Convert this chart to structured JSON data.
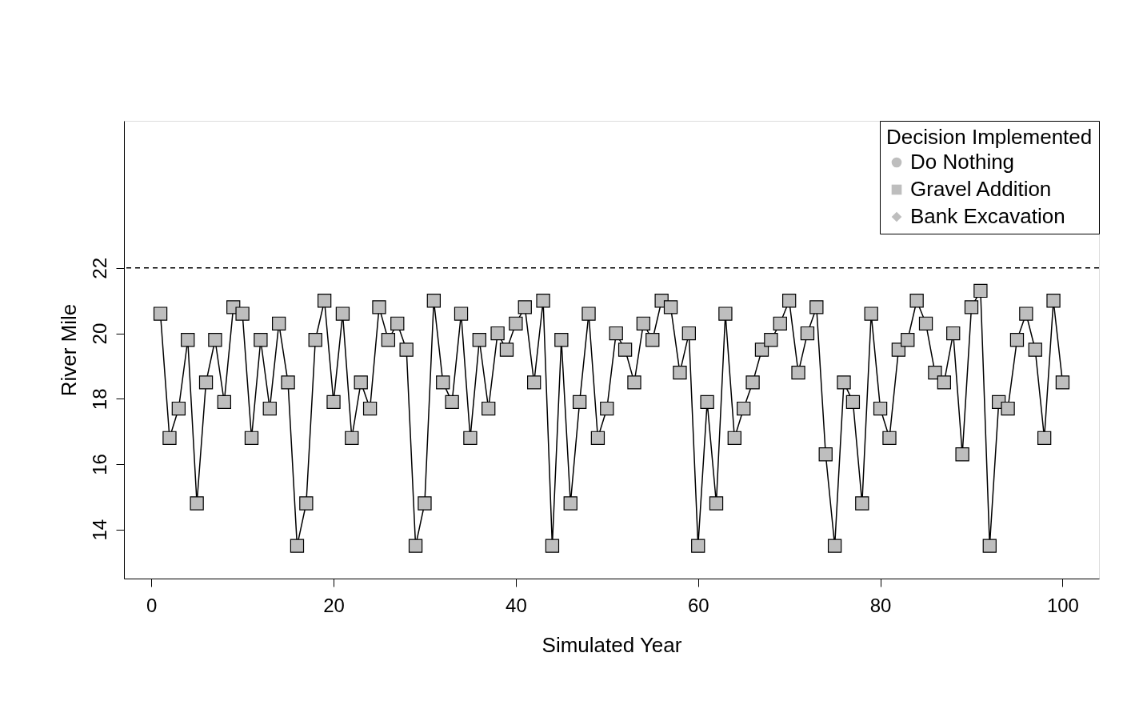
{
  "chart_data": {
    "type": "line",
    "xlabel": "Simulated Year",
    "ylabel": "River Mile",
    "legend_title": "Decision Implemented",
    "legend": "top right",
    "grid": false,
    "line_style": "solid",
    "xlim": [
      -3,
      104
    ],
    "ylim": [
      12.5,
      26.5
    ],
    "xticks": [
      0,
      20,
      40,
      60,
      80,
      100
    ],
    "yticks": [
      14,
      16,
      18,
      20,
      22
    ],
    "ref_lines": [
      {
        "axis": "y",
        "value": 22,
        "line_style": "dashed",
        "color": "#000000"
      }
    ],
    "series": [
      {
        "name": "Do Nothing",
        "color": "#bebebe",
        "marker": "circle"
      },
      {
        "name": "Gravel Addition",
        "color": "#bebebe",
        "marker": "square",
        "x": [
          1,
          2,
          3,
          4,
          5,
          6,
          7,
          8,
          9,
          10,
          11,
          12,
          13,
          14,
          15,
          16,
          17,
          18,
          19,
          20,
          21,
          22,
          23,
          24,
          25,
          26,
          27,
          28,
          29,
          30,
          31,
          32,
          33,
          34,
          35,
          36,
          37,
          38,
          39,
          40,
          41,
          42,
          43,
          44,
          45,
          46,
          47,
          48,
          49,
          50,
          51,
          52,
          53,
          54,
          55,
          56,
          57,
          58,
          59,
          60,
          61,
          62,
          63,
          64,
          65,
          66,
          67,
          68,
          69,
          70,
          71,
          72,
          73,
          74,
          75,
          76,
          77,
          78,
          79,
          80,
          81,
          82,
          83,
          84,
          85,
          86,
          87,
          88,
          89,
          90,
          91,
          92,
          93,
          94,
          95,
          96,
          97,
          98,
          99,
          100
        ],
        "values": [
          20.6,
          16.8,
          17.7,
          19.8,
          14.8,
          18.5,
          19.8,
          17.9,
          20.8,
          20.6,
          16.8,
          19.8,
          17.7,
          20.3,
          18.5,
          13.5,
          14.8,
          19.8,
          21.0,
          17.9,
          20.6,
          16.8,
          18.5,
          17.7,
          20.8,
          19.8,
          20.3,
          19.5,
          13.5,
          14.8,
          21.0,
          18.5,
          17.9,
          20.6,
          16.8,
          19.8,
          17.7,
          20.0,
          19.5,
          20.3,
          20.8,
          18.5,
          21.0,
          13.5,
          19.8,
          14.8,
          17.9,
          20.6,
          16.8,
          17.7,
          20.0,
          19.5,
          18.5,
          20.3,
          19.8,
          21.0,
          20.8,
          18.8,
          20.0,
          13.5,
          17.9,
          14.8,
          20.6,
          16.8,
          17.7,
          18.5,
          19.5,
          19.8,
          20.3,
          21.0,
          18.8,
          20.0,
          20.8,
          16.3,
          13.5,
          18.5,
          17.9,
          14.8,
          20.6,
          17.7,
          16.8,
          19.5,
          19.8,
          21.0,
          20.3,
          18.8,
          18.5,
          20.0,
          16.3,
          20.8,
          21.3,
          13.5,
          17.9,
          17.7,
          19.8,
          20.6,
          19.5,
          16.8,
          21.0,
          18.5
        ]
      },
      {
        "name": "Bank Excavation",
        "color": "#bebebe",
        "marker": "diamond"
      }
    ]
  }
}
